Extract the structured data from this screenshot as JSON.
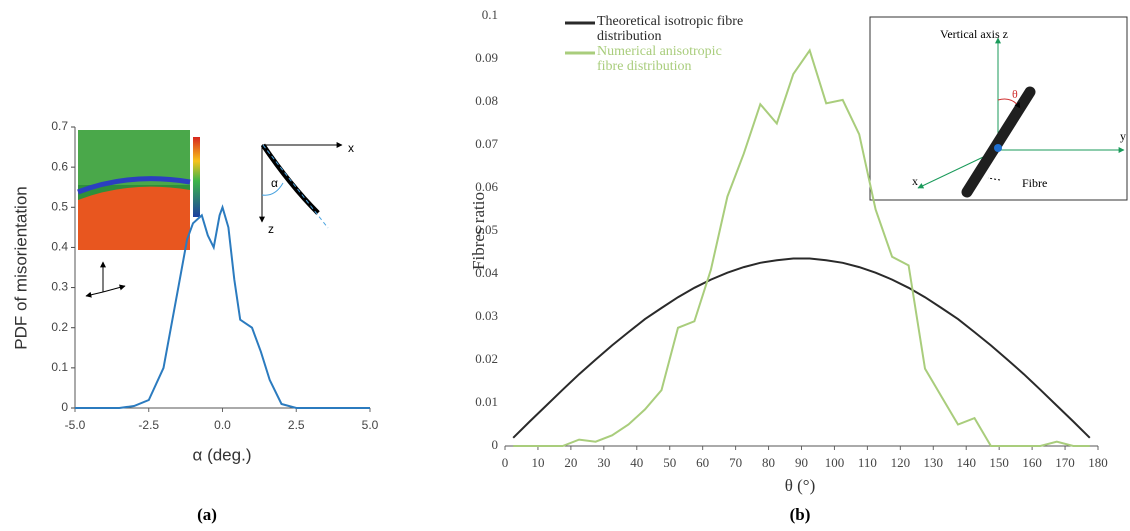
{
  "chart_data": [
    {
      "type": "line",
      "caption": "(a)",
      "x_label": "α (deg.)",
      "y_label": "PDF of misorientation",
      "color": "#2b7bbf",
      "x": [
        -5,
        -3.5,
        -3,
        -2.5,
        -2,
        -1.5,
        -1.2,
        -1,
        -0.7,
        -0.5,
        -0.3,
        -0.1,
        0,
        0.2,
        0.4,
        0.6,
        0.8,
        1,
        1.3,
        1.6,
        2,
        2.5,
        5
      ],
      "values": [
        0,
        0,
        0.005,
        0.02,
        0.1,
        0.3,
        0.42,
        0.46,
        0.48,
        0.43,
        0.4,
        0.48,
        0.5,
        0.45,
        0.32,
        0.22,
        0.21,
        0.2,
        0.14,
        0.07,
        0.01,
        0,
        0
      ],
      "xlim": [
        -5,
        5
      ],
      "xticks": [
        {
          "value": -5,
          "label": "-5.0"
        },
        {
          "value": -2.5,
          "label": "-2.5"
        },
        {
          "value": 0,
          "label": "0.0"
        },
        {
          "value": 2.5,
          "label": "2.5"
        },
        {
          "value": 5,
          "label": "5.0"
        }
      ],
      "ylim": [
        0,
        0.7
      ],
      "yticks": [
        0,
        0.1,
        0.2,
        0.3,
        0.4,
        0.5,
        0.6,
        0.7
      ],
      "inset_labels": [
        "x",
        "z",
        "α"
      ]
    },
    {
      "type": "line",
      "caption": "(b)",
      "x_label": "θ (°)",
      "y_label": "Fibres ratio",
      "x": [
        2.5,
        7.5,
        12.5,
        17.5,
        22.5,
        27.5,
        32.5,
        37.5,
        42.5,
        47.5,
        52.5,
        57.5,
        62.5,
        67.5,
        72.5,
        77.5,
        82.5,
        87.5,
        92.5,
        97.5,
        102.5,
        107.5,
        112.5,
        117.5,
        122.5,
        127.5,
        132.5,
        137.5,
        142.5,
        147.5,
        152.5,
        157.5,
        162.5,
        167.5,
        172.5,
        177.5
      ],
      "series": [
        {
          "name": "Theoretical isotropic fibre distribution",
          "color": "#2a2a2a",
          "values": [
            0.0019,
            0.0057,
            0.0094,
            0.0131,
            0.0167,
            0.0201,
            0.0234,
            0.0265,
            0.0295,
            0.0321,
            0.0346,
            0.0368,
            0.0387,
            0.0403,
            0.0416,
            0.0426,
            0.0432,
            0.0436,
            0.0436,
            0.0432,
            0.0426,
            0.0416,
            0.0403,
            0.0387,
            0.0368,
            0.0346,
            0.0321,
            0.0295,
            0.0265,
            0.0234,
            0.0201,
            0.0167,
            0.0131,
            0.0094,
            0.0057,
            0.0019
          ]
        },
        {
          "name": "Numerical anisotropic fibre distribution",
          "color": "#a9cd7c",
          "values": [
            0,
            0,
            0,
            0,
            0.0015,
            0.001,
            0.0025,
            0.005,
            0.0085,
            0.013,
            0.0275,
            0.029,
            0.041,
            0.058,
            0.068,
            0.0795,
            0.075,
            0.0865,
            0.092,
            0.0797,
            0.0805,
            0.0725,
            0.055,
            0.044,
            0.042,
            0.018,
            0.0115,
            0.005,
            0.0065,
            0,
            0,
            0,
            0,
            0.001,
            0,
            0
          ]
        }
      ],
      "xlim": [
        0,
        180
      ],
      "xticks": [
        0,
        10,
        20,
        30,
        40,
        50,
        60,
        70,
        80,
        90,
        100,
        110,
        120,
        130,
        140,
        150,
        160,
        170,
        180
      ],
      "ylim": [
        0,
        0.1
      ],
      "yticks": [
        0,
        0.01,
        0.02,
        0.03,
        0.04,
        0.05,
        0.06,
        0.07,
        0.08,
        0.09,
        0.1
      ],
      "legend": "upper left",
      "inset_labels": [
        "Vertical axis z",
        "θ",
        "y",
        "x",
        "Fibre"
      ]
    }
  ]
}
